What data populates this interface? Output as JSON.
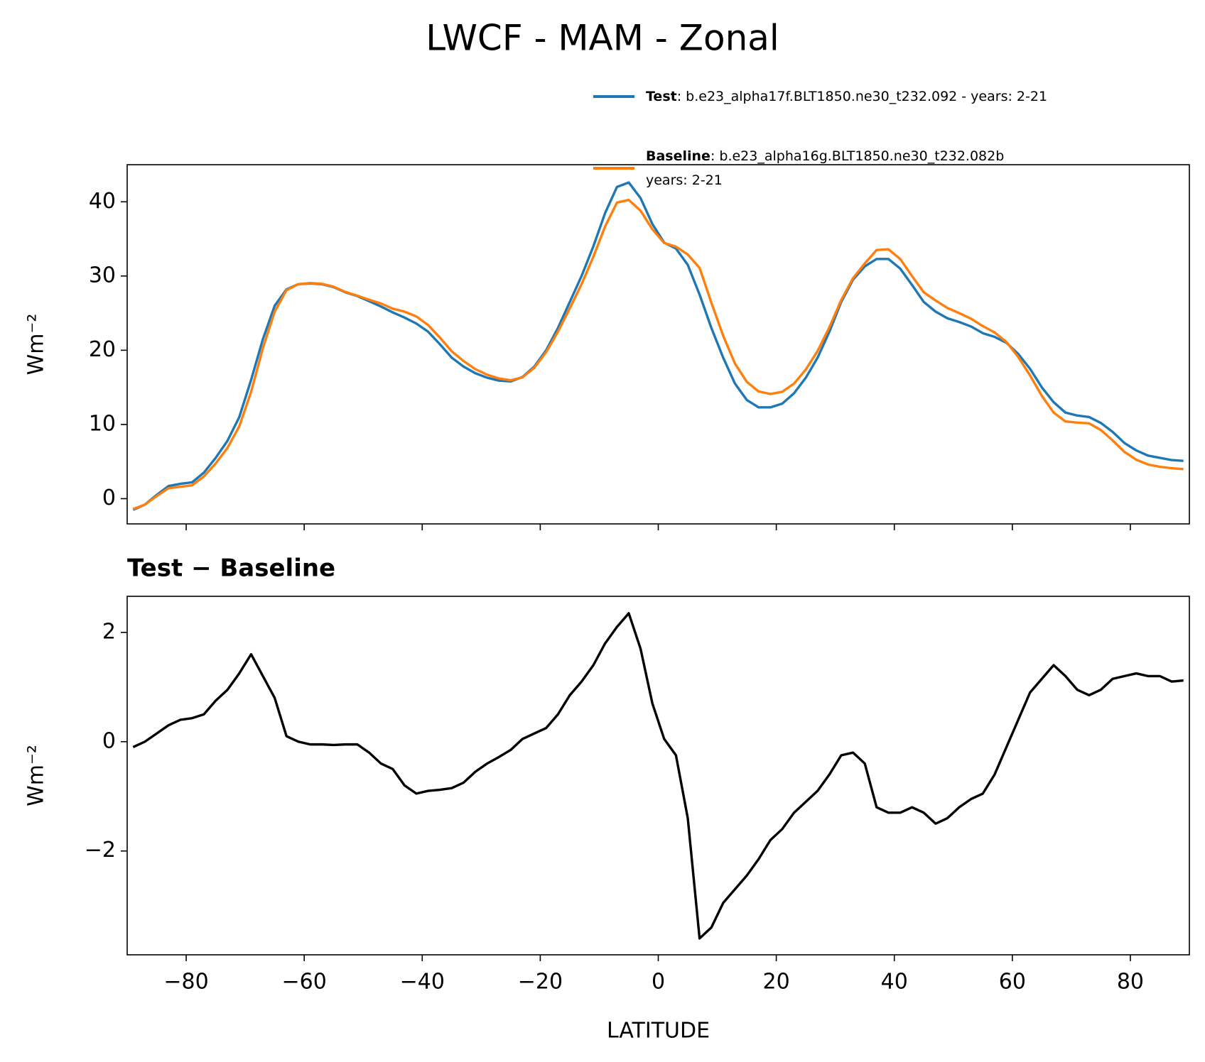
{
  "chart_data": [
    {
      "type": "line",
      "title": "LWCF - MAM - Zonal",
      "ylabel": "Wm⁻²",
      "x": [
        -89,
        -87,
        -85,
        -83,
        -81,
        -79,
        -77,
        -75,
        -73,
        -71,
        -69,
        -67,
        -65,
        -63,
        -61,
        -59,
        -57,
        -55,
        -53,
        -51,
        -49,
        -47,
        -45,
        -43,
        -41,
        -39,
        -37,
        -35,
        -33,
        -31,
        -29,
        -27,
        -25,
        -23,
        -21,
        -19,
        -17,
        -15,
        -13,
        -11,
        -9,
        -7,
        -5,
        -3,
        -1,
        1,
        3,
        5,
        7,
        9,
        11,
        13,
        15,
        17,
        19,
        21,
        23,
        25,
        27,
        29,
        31,
        33,
        35,
        37,
        39,
        41,
        43,
        45,
        47,
        49,
        51,
        53,
        55,
        57,
        59,
        61,
        63,
        65,
        67,
        69,
        71,
        73,
        75,
        77,
        79,
        81,
        83,
        85,
        87,
        89
      ],
      "series": [
        {
          "name": "Test",
          "description": [
            ": b.e23_alpha17f.BLT1850.ne30_t232.092 - years: 2-21"
          ],
          "color": "#1f77b4",
          "values": [
            -1.5,
            -0.8,
            0.5,
            1.7,
            2.0,
            2.2,
            3.5,
            5.5,
            7.8,
            11,
            16,
            21.5,
            26,
            28.2,
            28.9,
            29,
            28.9,
            28.5,
            27.8,
            27.3,
            26.6,
            25.9,
            25.1,
            24.4,
            23.6,
            22.5,
            20.8,
            19.0,
            17.8,
            16.9,
            16.3,
            15.9,
            15.8,
            16.4,
            17.8,
            20.0,
            23.0,
            26.5,
            30.0,
            34.0,
            38.5,
            42.0,
            42.6,
            40.5,
            37.0,
            34.5,
            33.7,
            31.5,
            27.5,
            23.0,
            19.0,
            15.5,
            13.3,
            12.3,
            12.3,
            12.8,
            14.2,
            16.3,
            19.0,
            22.5,
            26.5,
            29.5,
            31.3,
            32.3,
            32.3,
            31.0,
            28.8,
            26.5,
            25.2,
            24.3,
            23.8,
            23.2,
            22.3,
            21.8,
            21.0,
            19.5,
            17.5,
            15.0,
            13.0,
            11.6,
            11.2,
            11.0,
            10.2,
            9.0,
            7.5,
            6.5,
            5.8,
            5.5,
            5.2,
            5.1
          ]
        },
        {
          "name": "Baseline",
          "description": [
            ": b.e23_alpha16g.BLT1850.ne30_t232.082b",
            "years: 2-21"
          ],
          "color": "#ff7f0e",
          "values": [
            -1.4,
            -0.8,
            0.35,
            1.4,
            1.6,
            1.8,
            3.0,
            4.75,
            6.85,
            9.75,
            14.4,
            20.3,
            25.2,
            28.1,
            28.9,
            29.05,
            28.95,
            28.56,
            27.85,
            27.35,
            26.8,
            26.3,
            25.6,
            25.2,
            24.55,
            23.4,
            21.7,
            19.85,
            18.55,
            17.45,
            16.7,
            16.2,
            15.95,
            16.35,
            17.65,
            19.75,
            22.5,
            25.65,
            28.9,
            32.6,
            36.7,
            39.9,
            40.25,
            38.8,
            36.3,
            34.45,
            33.95,
            32.9,
            31.1,
            26.4,
            21.95,
            18.2,
            15.75,
            14.45,
            14.1,
            14.4,
            15.5,
            17.4,
            19.9,
            23.1,
            26.75,
            29.7,
            31.7,
            33.5,
            33.6,
            32.3,
            30.0,
            27.8,
            26.7,
            25.7,
            25.0,
            24.25,
            23.25,
            22.4,
            21.1,
            19.1,
            16.6,
            13.85,
            11.6,
            10.4,
            10.25,
            10.15,
            9.25,
            7.85,
            6.3,
            5.25,
            4.6,
            4.3,
            4.1,
            3.98
          ]
        }
      ],
      "xlim": [
        -90,
        90
      ],
      "xticks": [
        -80,
        -60,
        -40,
        -20,
        0,
        20,
        40,
        60,
        80
      ],
      "ylim": [
        -3.4,
        45
      ],
      "yticks": [
        0,
        10,
        20,
        30,
        40
      ]
    },
    {
      "type": "line",
      "title": "Test − Baseline",
      "ylabel": "Wm⁻²",
      "xlabel": "LATITUDE",
      "color": "#000000",
      "x": [
        -89,
        -87,
        -85,
        -83,
        -81,
        -79,
        -77,
        -75,
        -73,
        -71,
        -69,
        -67,
        -65,
        -63,
        -61,
        -59,
        -57,
        -55,
        -53,
        -51,
        -49,
        -47,
        -45,
        -43,
        -41,
        -39,
        -37,
        -35,
        -33,
        -31,
        -29,
        -27,
        -25,
        -23,
        -21,
        -19,
        -17,
        -15,
        -13,
        -11,
        -9,
        -7,
        -5,
        -3,
        -1,
        1,
        3,
        5,
        7,
        9,
        11,
        13,
        15,
        17,
        19,
        21,
        23,
        25,
        27,
        29,
        31,
        33,
        35,
        37,
        39,
        41,
        43,
        45,
        47,
        49,
        51,
        53,
        55,
        57,
        59,
        61,
        63,
        65,
        67,
        69,
        71,
        73,
        75,
        77,
        79,
        81,
        83,
        85,
        87,
        89
      ],
      "values": [
        -0.1,
        0.0,
        0.15,
        0.3,
        0.4,
        0.43,
        0.5,
        0.75,
        0.95,
        1.25,
        1.6,
        1.2,
        0.8,
        0.1,
        0.0,
        -0.05,
        -0.05,
        -0.06,
        -0.05,
        -0.05,
        -0.2,
        -0.4,
        -0.5,
        -0.8,
        -0.95,
        -0.9,
        -0.88,
        -0.85,
        -0.75,
        -0.55,
        -0.4,
        -0.28,
        -0.15,
        0.05,
        0.15,
        0.25,
        0.5,
        0.85,
        1.1,
        1.4,
        1.8,
        2.1,
        2.35,
        1.7,
        0.7,
        0.05,
        -0.25,
        -1.4,
        -3.6,
        -3.4,
        -2.95,
        -2.7,
        -2.45,
        -2.15,
        -1.8,
        -1.6,
        -1.3,
        -1.1,
        -0.9,
        -0.6,
        -0.25,
        -0.2,
        -0.4,
        -1.2,
        -1.3,
        -1.3,
        -1.2,
        -1.3,
        -1.5,
        -1.4,
        -1.2,
        -1.05,
        -0.95,
        -0.6,
        -0.1,
        0.4,
        0.9,
        1.15,
        1.4,
        1.2,
        0.95,
        0.85,
        0.95,
        1.15,
        1.2,
        1.25,
        1.2,
        1.2,
        1.1,
        1.12
      ],
      "xlim": [
        -90,
        90
      ],
      "xticks": [
        {
          "value": -80,
          "label": "−80"
        },
        {
          "value": -60,
          "label": "−60"
        },
        {
          "value": -40,
          "label": "−40"
        },
        {
          "value": -20,
          "label": "−20"
        },
        0,
        20,
        40,
        60,
        80
      ],
      "ylim": [
        -3.9,
        2.66
      ],
      "yticks": [
        {
          "value": -2,
          "label": "−2"
        },
        0,
        2
      ]
    }
  ]
}
